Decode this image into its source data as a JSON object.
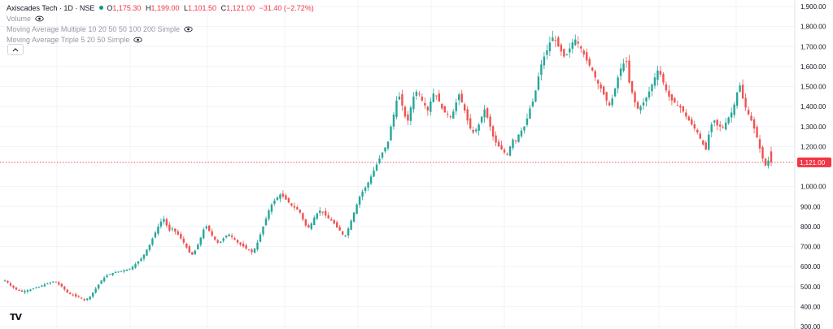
{
  "legend": {
    "title": "Axiscades Tech · 1D · NSE",
    "open_key": "O",
    "open_value": "1,175.30",
    "high_key": "H",
    "high_value": "1,199.00",
    "low_key": "L",
    "low_value": "1,101.50",
    "close_key": "C",
    "close_value": "1,121.00",
    "change": "−31.40 (−2.72%)",
    "indicators": [
      "Volume",
      "Moving Average Multiple 10 20 50 50 100 200 Simple",
      "Moving Average Triple 5 20 50 Simple"
    ]
  },
  "logo_text": "TV",
  "colors": {
    "up": "#26a69a",
    "down": "#ef5350",
    "price_line": "#f23645",
    "axis_text": "#131722",
    "grid": "#f0f3fa",
    "status_dot": "#089981"
  },
  "chart_data": {
    "type": "candlestick",
    "last_price": 1121,
    "last_price_label": "1,121.00",
    "ylim": [
      300,
      1900
    ],
    "y_ticks": [
      {
        "value": 1900,
        "label": "1,900.00"
      },
      {
        "value": 1800,
        "label": "1,800.00"
      },
      {
        "value": 1700,
        "label": "1,700.00"
      },
      {
        "value": 1600,
        "label": "1,600.00"
      },
      {
        "value": 1500,
        "label": "1,500.00"
      },
      {
        "value": 1400,
        "label": "1,400.00"
      },
      {
        "value": 1300,
        "label": "1,300.00"
      },
      {
        "value": 1200,
        "label": "1,200.00"
      },
      {
        "value": 1000,
        "label": "1,000.00"
      },
      {
        "value": 900,
        "label": "900.00"
      },
      {
        "value": 800,
        "label": "800.00"
      },
      {
        "value": 700,
        "label": "700.00"
      },
      {
        "value": 600,
        "label": "600.00"
      },
      {
        "value": 500,
        "label": "500.00"
      },
      {
        "value": 400,
        "label": "400.00"
      },
      {
        "value": 300,
        "label": "300.00"
      }
    ],
    "close_path": [
      530,
      520,
      505,
      495,
      485,
      480,
      475,
      478,
      482,
      485,
      490,
      495,
      498,
      505,
      510,
      515,
      520,
      525,
      522,
      510,
      500,
      485,
      470,
      462,
      458,
      450,
      448,
      440,
      432,
      440,
      450,
      470,
      490,
      510,
      530,
      545,
      555,
      562,
      568,
      572,
      575,
      578,
      582,
      585,
      590,
      600,
      612,
      625,
      640,
      660,
      685,
      710,
      740,
      770,
      800,
      825,
      838,
      805,
      780,
      790,
      775,
      760,
      740,
      720,
      695,
      670,
      660,
      680,
      710,
      745,
      785,
      800,
      778,
      755,
      735,
      720,
      725,
      740,
      755,
      760,
      748,
      735,
      720,
      710,
      700,
      690,
      682,
      672,
      690,
      720,
      760,
      800,
      840,
      880,
      910,
      930,
      945,
      960,
      950,
      935,
      920,
      905,
      895,
      885,
      870,
      835,
      805,
      795,
      815,
      845,
      865,
      880,
      870,
      855,
      840,
      830,
      815,
      795,
      780,
      760,
      755,
      790,
      830,
      870,
      910,
      950,
      975,
      995,
      1020,
      1050,
      1080,
      1110,
      1140,
      1170,
      1195,
      1225,
      1300,
      1360,
      1430,
      1450,
      1405,
      1350,
      1330,
      1395,
      1450,
      1475,
      1460,
      1430,
      1405,
      1380,
      1425,
      1465,
      1455,
      1425,
      1390,
      1370,
      1360,
      1350,
      1375,
      1420,
      1460,
      1420,
      1380,
      1330,
      1290,
      1270,
      1285,
      1310,
      1350,
      1385,
      1345,
      1300,
      1250,
      1220,
      1200,
      1185,
      1170,
      1160,
      1200,
      1235,
      1230,
      1260,
      1280,
      1300,
      1340,
      1390,
      1425,
      1480,
      1550,
      1610,
      1650,
      1680,
      1720,
      1745,
      1730,
      1700,
      1675,
      1650,
      1660,
      1690,
      1720,
      1735,
      1715,
      1690,
      1660,
      1630,
      1605,
      1580,
      1545,
      1515,
      1490,
      1460,
      1430,
      1405,
      1440,
      1490,
      1545,
      1590,
      1615,
      1625,
      1520,
      1470,
      1420,
      1390,
      1400,
      1420,
      1445,
      1475,
      1510,
      1545,
      1580,
      1560,
      1520,
      1480,
      1450,
      1430,
      1420,
      1405,
      1395,
      1375,
      1350,
      1330,
      1310,
      1290,
      1270,
      1240,
      1210,
      1185,
      1260,
      1310,
      1330,
      1305,
      1300,
      1295,
      1320,
      1345,
      1370,
      1410,
      1470,
      1505,
      1440,
      1395,
      1360,
      1330,
      1290,
      1245,
      1190,
      1140,
      1105,
      1130,
      1121
    ]
  }
}
